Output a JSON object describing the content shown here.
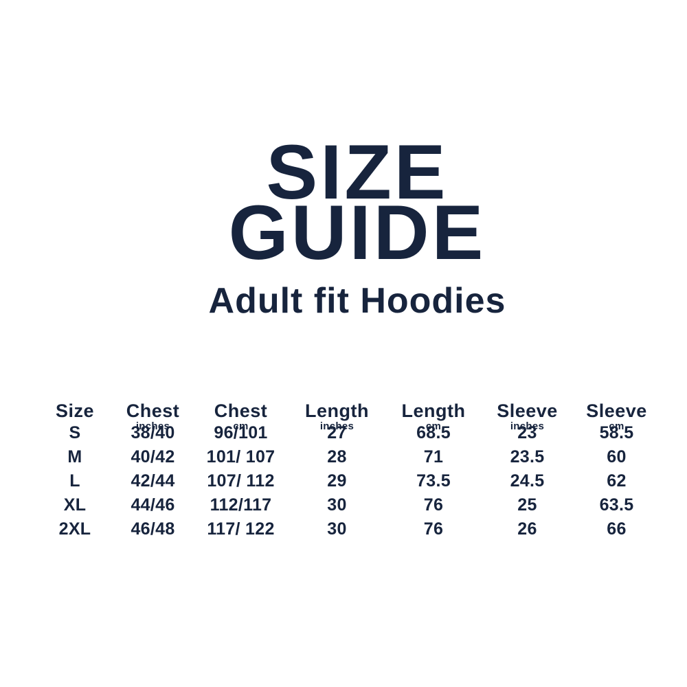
{
  "colors": {
    "background": "#ffffff",
    "text_navy": "#17243d"
  },
  "header": {
    "title_line1": "SIZE",
    "title_line2": "GUIDE",
    "subtitle": "Adult fit Hoodies"
  },
  "chart_data": {
    "type": "table",
    "title": "SIZE GUIDE",
    "subtitle": "Adult fit Hoodies",
    "columns": [
      {
        "label": "Size",
        "unit": ""
      },
      {
        "label": "Chest",
        "unit": "inches"
      },
      {
        "label": "Chest",
        "unit": "cm"
      },
      {
        "label": "Length",
        "unit": "inches"
      },
      {
        "label": "Length",
        "unit": "cm"
      },
      {
        "label": "Sleeve",
        "unit": "inches"
      },
      {
        "label": "Sleeve",
        "unit": "cm"
      }
    ],
    "rows": [
      [
        "S",
        "38/40",
        "96/101",
        "27",
        "68.5",
        "23",
        "58.5"
      ],
      [
        "M",
        "40/42",
        "101/ 107",
        "28",
        "71",
        "23.5",
        "60"
      ],
      [
        "L",
        "42/44",
        "107/ 112",
        "29",
        "73.5",
        "24.5",
        "62"
      ],
      [
        "XL",
        "44/46",
        "112/117",
        "30",
        "76",
        "25",
        "63.5"
      ],
      [
        "2XL",
        "46/48",
        "117/ 122",
        "30",
        "76",
        "26",
        "66"
      ]
    ]
  }
}
